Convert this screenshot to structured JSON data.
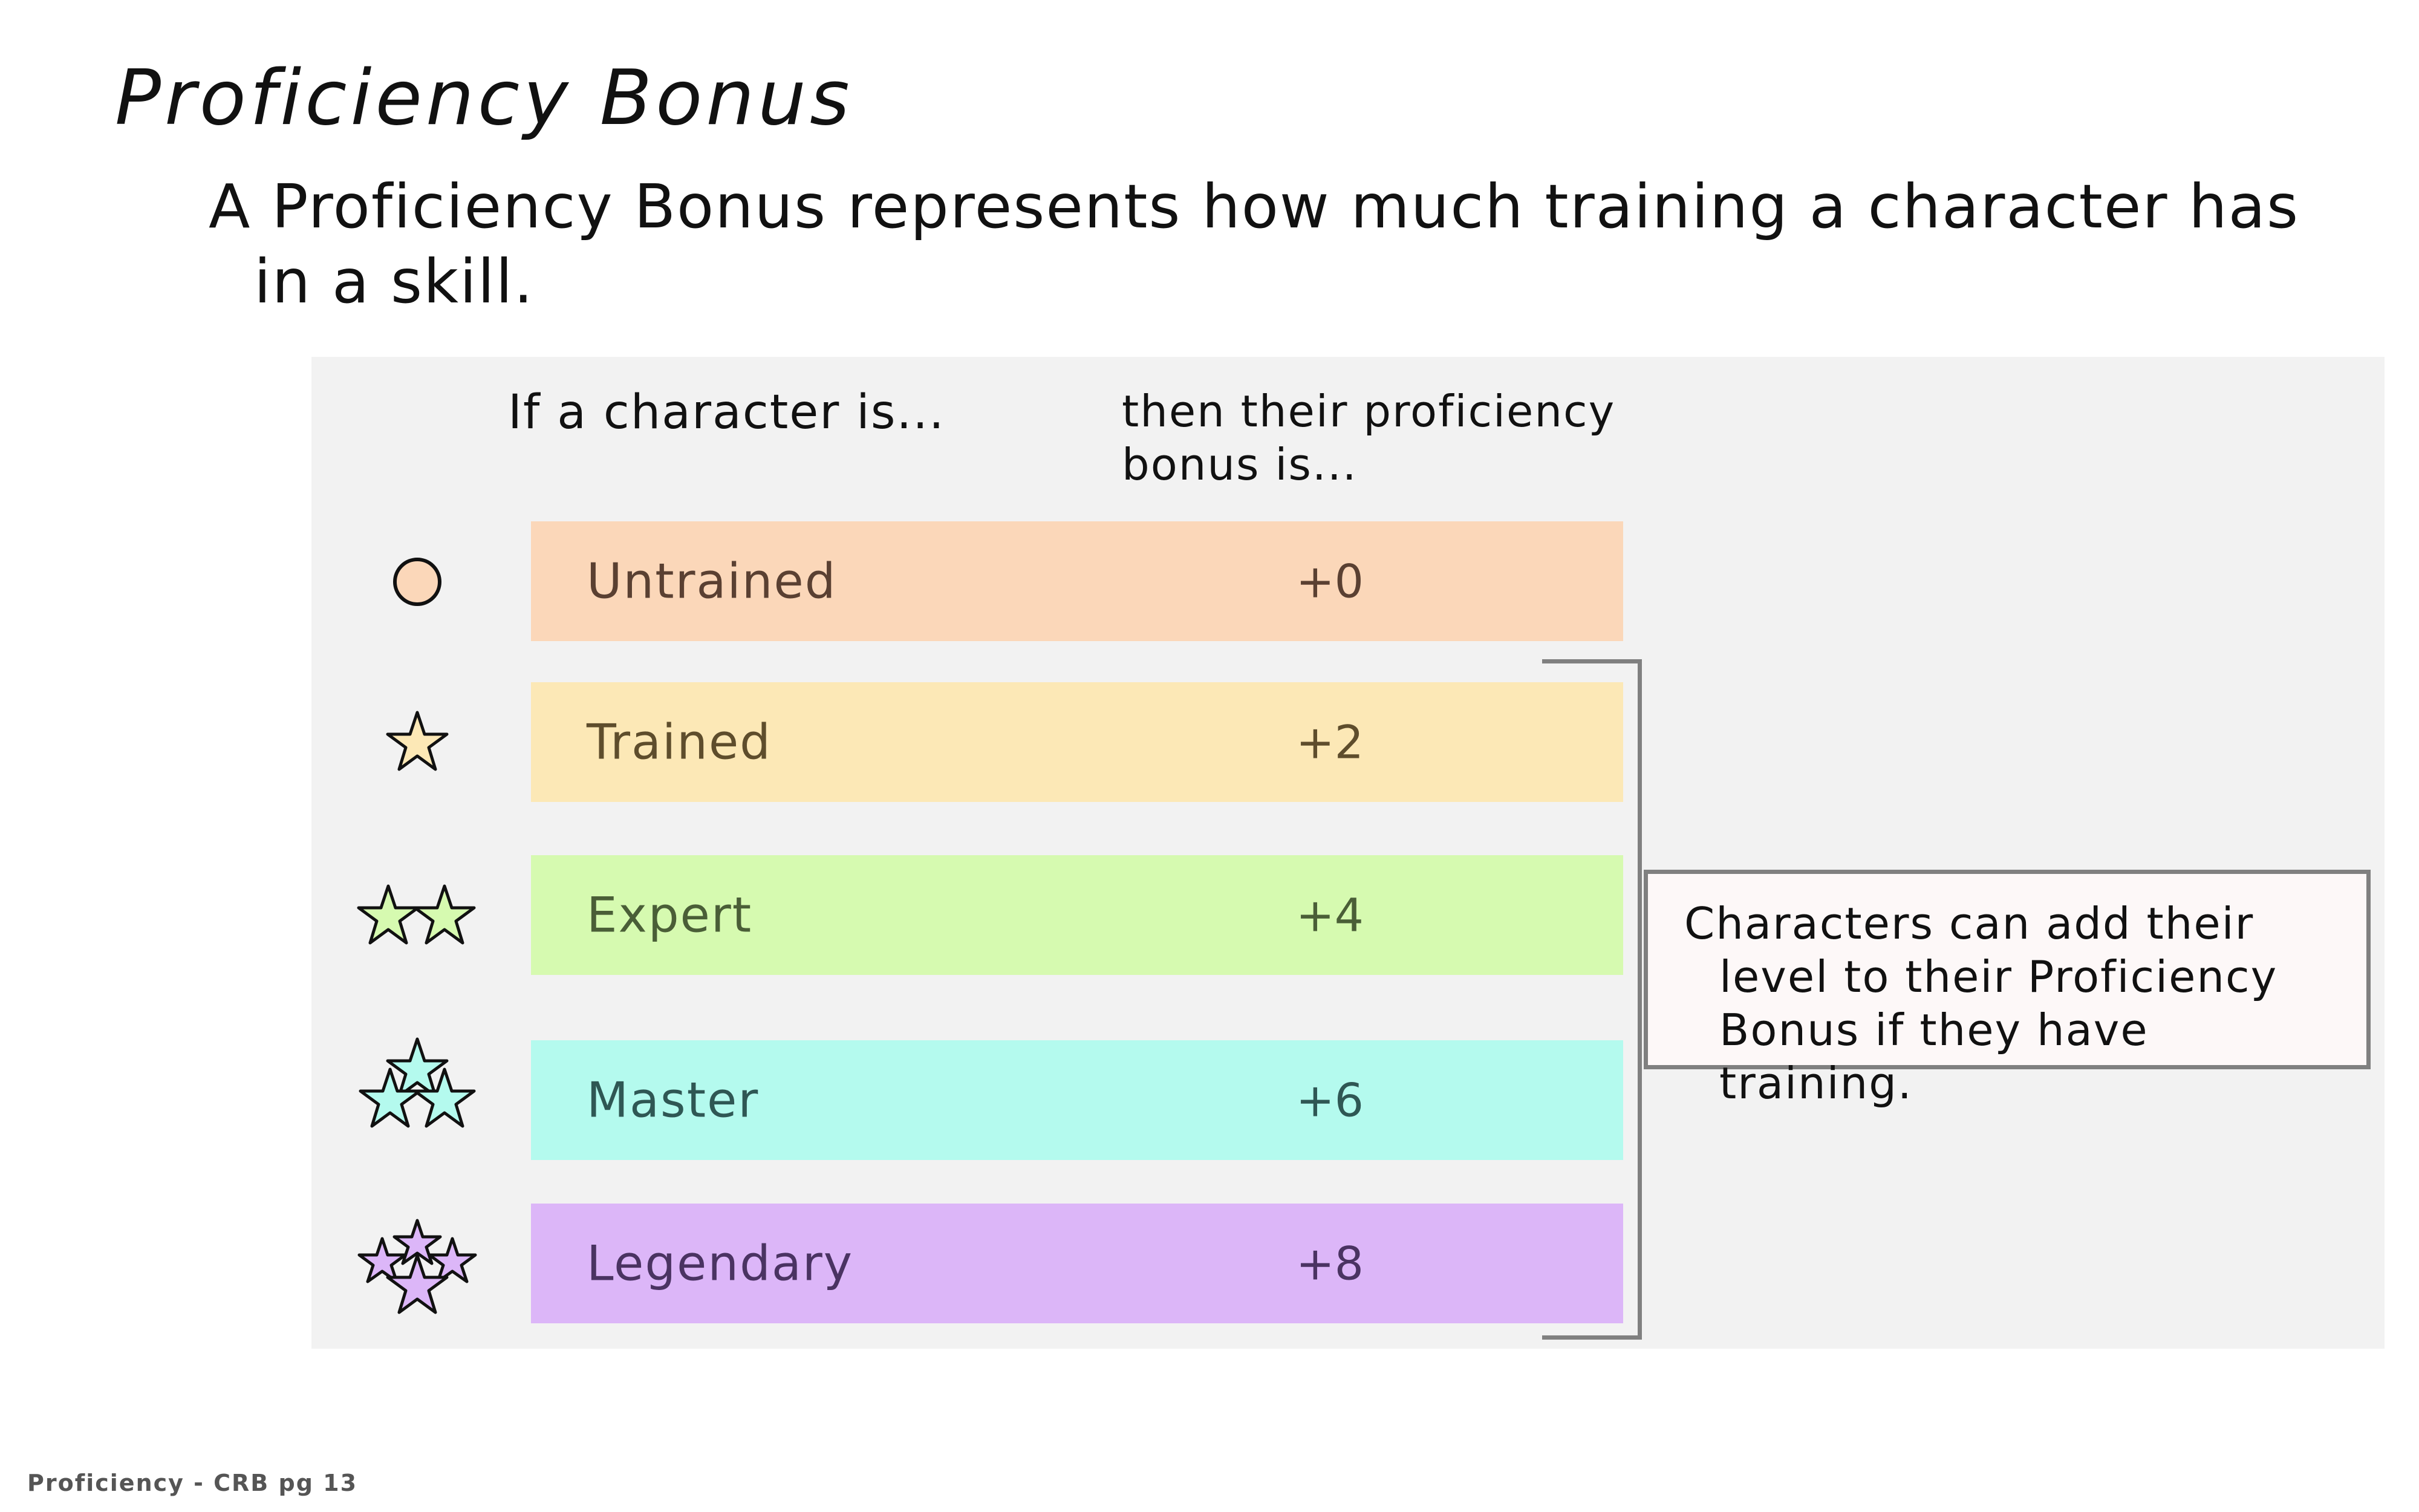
{
  "title": "Proficiency Bonus",
  "intro": "A Proficiency Bonus represents how much training a character has in a skill.",
  "table": {
    "header_rank": "If a character is...",
    "header_bonus": "then their proficiency bonus is...",
    "rows": [
      {
        "level": "Untrained",
        "bonus": "+0",
        "icon": "circle-icon",
        "color": "#fbd7b9",
        "text_color": "#5a4032"
      },
      {
        "level": "Trained",
        "bonus": "+2",
        "icon": "star-icon",
        "color": "#fce8b6",
        "text_color": "#5e4d2c"
      },
      {
        "level": "Expert",
        "bonus": "+4",
        "icon": "two-stars-icon",
        "color": "#d6fab0",
        "text_color": "#4a5e37"
      },
      {
        "level": "Master",
        "bonus": "+6",
        "icon": "three-stars-icon",
        "color": "#b4faee",
        "text_color": "#2f5754"
      },
      {
        "level": "Legendary",
        "bonus": "+8",
        "icon": "four-stars-icon",
        "color": "#dcb6f8",
        "text_color": "#4a3362"
      }
    ]
  },
  "note": "Characters can add their level to their Proficiency Bonus if they have training.",
  "footer": "Proficiency - CRB pg 13"
}
